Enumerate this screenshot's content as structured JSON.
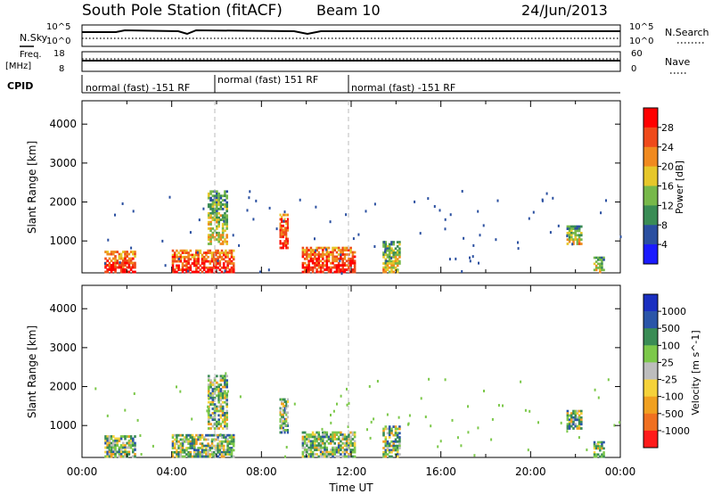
{
  "header": {
    "title": "South Pole Station (fitACF)",
    "beam": "Beam 10",
    "date": "24/Jun/2013"
  },
  "summary": {
    "nsky_label": "N.Sky",
    "nsky_ticks": [
      "10^5",
      "10^0"
    ],
    "nsearch_label": "N.Search",
    "nsearch_ticks": [
      "10^5",
      "10^0"
    ],
    "freq_label": "Freq.",
    "freq_unit": "[MHz]",
    "freq_ticks": [
      "18",
      "8"
    ],
    "nave_label": "Nave",
    "nave_ticks": [
      "60",
      "0"
    ],
    "cpid_label": "CPID",
    "cpid_segments": [
      {
        "text": "normal (fast) -151 RF",
        "start": 0,
        "end": 6
      },
      {
        "text": "normal (fast) 151 RF",
        "start": 6,
        "end": 12
      },
      {
        "text": "normal (fast) -151 RF",
        "start": 12,
        "end": 24
      }
    ]
  },
  "chart_data": [
    {
      "type": "heatmap",
      "name": "power-panel",
      "ylabel": "Slant Range [km]",
      "yticks": [
        "1000",
        "2000",
        "3000",
        "4000"
      ],
      "ylim": [
        180,
        4600
      ],
      "xlim": [
        0,
        24
      ],
      "colorbar_label": "Power [dB]",
      "colorbar_ticks": [
        "4",
        "8",
        "12",
        "16",
        "20",
        "24",
        "28"
      ],
      "colorbar_colors": [
        "#1a1aff",
        "#2a4fa0",
        "#3a8c55",
        "#77b84a",
        "#e6c72a",
        "#f08a1f",
        "#ef4a1a",
        "#ff0000"
      ],
      "features": [
        {
          "t0": 1.0,
          "t1": 2.4,
          "r0": 180,
          "r1": 750,
          "level": "high"
        },
        {
          "t0": 4.0,
          "t1": 6.8,
          "r0": 180,
          "r1": 780,
          "level": "high"
        },
        {
          "t0": 5.6,
          "t1": 6.5,
          "r0": 900,
          "r1": 2300,
          "level": "mid"
        },
        {
          "t0": 8.8,
          "t1": 9.2,
          "r0": 800,
          "r1": 1700,
          "level": "high"
        },
        {
          "t0": 9.8,
          "t1": 12.2,
          "r0": 180,
          "r1": 850,
          "level": "high"
        },
        {
          "t0": 13.4,
          "t1": 14.2,
          "r0": 180,
          "r1": 1000,
          "level": "mid"
        },
        {
          "t0": 21.6,
          "t1": 22.3,
          "r0": 900,
          "r1": 1400,
          "level": "mid"
        },
        {
          "t0": 22.8,
          "t1": 23.3,
          "r0": 180,
          "r1": 600,
          "level": "mid"
        }
      ]
    },
    {
      "type": "heatmap",
      "name": "velocity-panel",
      "ylabel": "Slant Range [km]",
      "yticks": [
        "1000",
        "2000",
        "3000",
        "4000"
      ],
      "ylim": [
        180,
        4600
      ],
      "xlim": [
        0,
        24
      ],
      "xticks": [
        "00:00",
        "04:00",
        "08:00",
        "12:00",
        "16:00",
        "20:00",
        "00:00"
      ],
      "xlabel": "Time UT",
      "colorbar_label": "Velocity [m s^-1]",
      "colorbar_ticks": [
        "1000",
        "500",
        "100",
        "25",
        "-25",
        "-100",
        "-500",
        "-1000"
      ],
      "colorbar_colors": [
        "#1a2fc0",
        "#2a55a8",
        "#3a8c55",
        "#7cc84a",
        "#bdbdbd",
        "#f5d23a",
        "#f0a020",
        "#f07020",
        "#ff1a1a"
      ],
      "features": [
        {
          "t0": 1.0,
          "t1": 2.4,
          "r0": 180,
          "r1": 750,
          "level": "mixed"
        },
        {
          "t0": 4.0,
          "t1": 6.8,
          "r0": 180,
          "r1": 780,
          "level": "mixed"
        },
        {
          "t0": 5.6,
          "t1": 6.5,
          "r0": 900,
          "r1": 2300,
          "level": "mixed"
        },
        {
          "t0": 8.8,
          "t1": 9.2,
          "r0": 800,
          "r1": 1700,
          "level": "mixed"
        },
        {
          "t0": 9.8,
          "t1": 12.2,
          "r0": 180,
          "r1": 850,
          "level": "mixed"
        },
        {
          "t0": 13.4,
          "t1": 14.2,
          "r0": 180,
          "r1": 1000,
          "level": "mixed"
        },
        {
          "t0": 21.6,
          "t1": 22.3,
          "r0": 900,
          "r1": 1400,
          "level": "mixed"
        },
        {
          "t0": 22.8,
          "t1": 23.3,
          "r0": 180,
          "r1": 600,
          "level": "mixed"
        }
      ]
    }
  ]
}
